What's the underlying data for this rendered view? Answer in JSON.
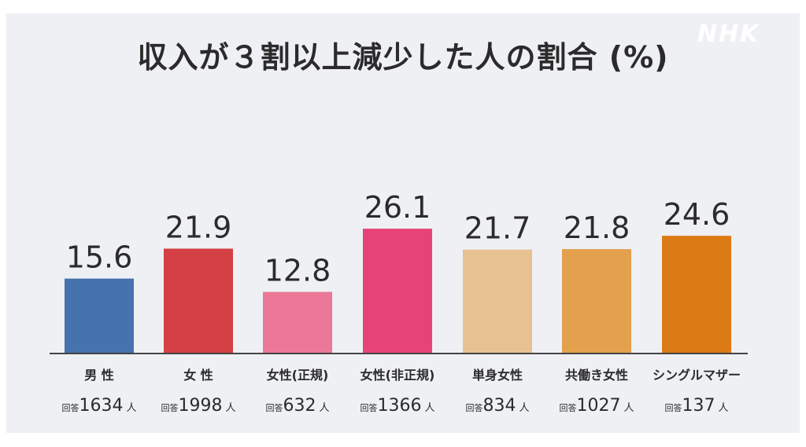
{
  "logo": "NHK",
  "chart_data": {
    "type": "bar",
    "title": "収入が３割以上減少した人の割合 (%)",
    "categories": [
      "男 性",
      "女 性",
      "女性(正規)",
      "女性(非正規)",
      "単身女性",
      "共働き女性",
      "シングルマザー"
    ],
    "values": [
      15.6,
      21.9,
      12.8,
      26.1,
      21.7,
      21.8,
      24.6
    ],
    "value_labels": [
      "15.6",
      "21.9",
      "12.8",
      "26.1",
      "21.7",
      "21.8",
      "24.6"
    ],
    "respondent_prefix": "回答",
    "respondent_counts": [
      "1634",
      "1998",
      "632",
      "1366",
      "834",
      "1027",
      "137"
    ],
    "respondent_suffix": "人",
    "colors": [
      "#4672ae",
      "#d44043",
      "#eb7898",
      "#e64377",
      "#e8c193",
      "#e3a04d",
      "#dc7a15"
    ],
    "baseline_color": "#444444",
    "ylim": [
      0,
      30
    ],
    "grid": false,
    "legend": "none",
    "xlabel": "",
    "ylabel": ""
  }
}
